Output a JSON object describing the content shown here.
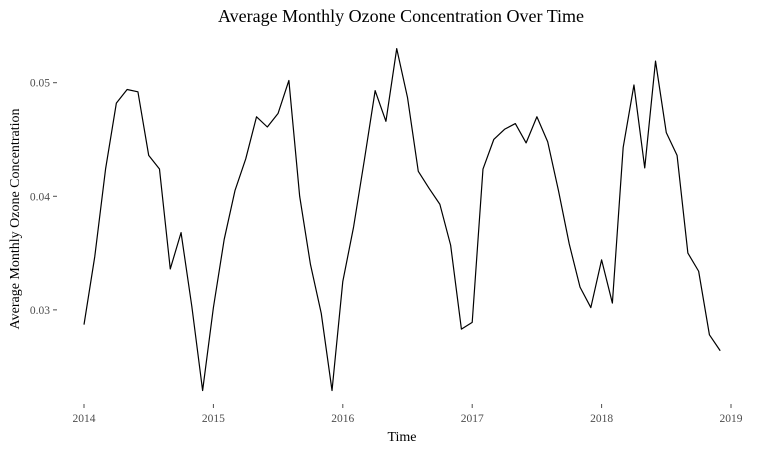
{
  "chart_data": {
    "type": "line",
    "title": "Average Monthly Ozone Concentration Over Time",
    "xlabel": "Time",
    "ylabel": "Average Monthly Ozone Concentration",
    "xlim": [
      2014,
      2019
    ],
    "ylim": [
      0.0218,
      0.0542
    ],
    "xticks": [
      {
        "value": 2014,
        "label": "2014"
      },
      {
        "value": 2015,
        "label": "2015"
      },
      {
        "value": 2016,
        "label": "2016"
      },
      {
        "value": 2017,
        "label": "2017"
      },
      {
        "value": 2018,
        "label": "2018"
      },
      {
        "value": 2019,
        "label": "2019"
      }
    ],
    "yticks": [
      {
        "value": 0.03,
        "label": "0.03"
      },
      {
        "value": 0.04,
        "label": "0.04"
      },
      {
        "value": 0.05,
        "label": "0.05"
      }
    ],
    "grid": false,
    "legend": "none",
    "color": "#000000",
    "series": [
      {
        "values": [
          0.0287,
          0.0347,
          0.0424,
          0.0482,
          0.0494,
          0.0492,
          0.0436,
          0.0424,
          0.0336,
          0.0368,
          0.0303,
          0.0229,
          0.0302,
          0.0362,
          0.0405,
          0.0433,
          0.047,
          0.0461,
          0.0473,
          0.0502,
          0.04,
          0.034,
          0.0297,
          0.0229,
          0.0325,
          0.0373,
          0.0432,
          0.0493,
          0.0466,
          0.053,
          0.0487,
          0.0422,
          0.0407,
          0.0393,
          0.0357,
          0.0283,
          0.0289,
          0.0424,
          0.045,
          0.0459,
          0.0464,
          0.0447,
          0.047,
          0.0448,
          0.0405,
          0.0358,
          0.032,
          0.0302,
          0.0344,
          0.0306,
          0.0443,
          0.0498,
          0.0425,
          0.0519,
          0.0456,
          0.0436,
          0.035,
          0.0334,
          0.0278,
          0.0264
        ]
      }
    ]
  }
}
